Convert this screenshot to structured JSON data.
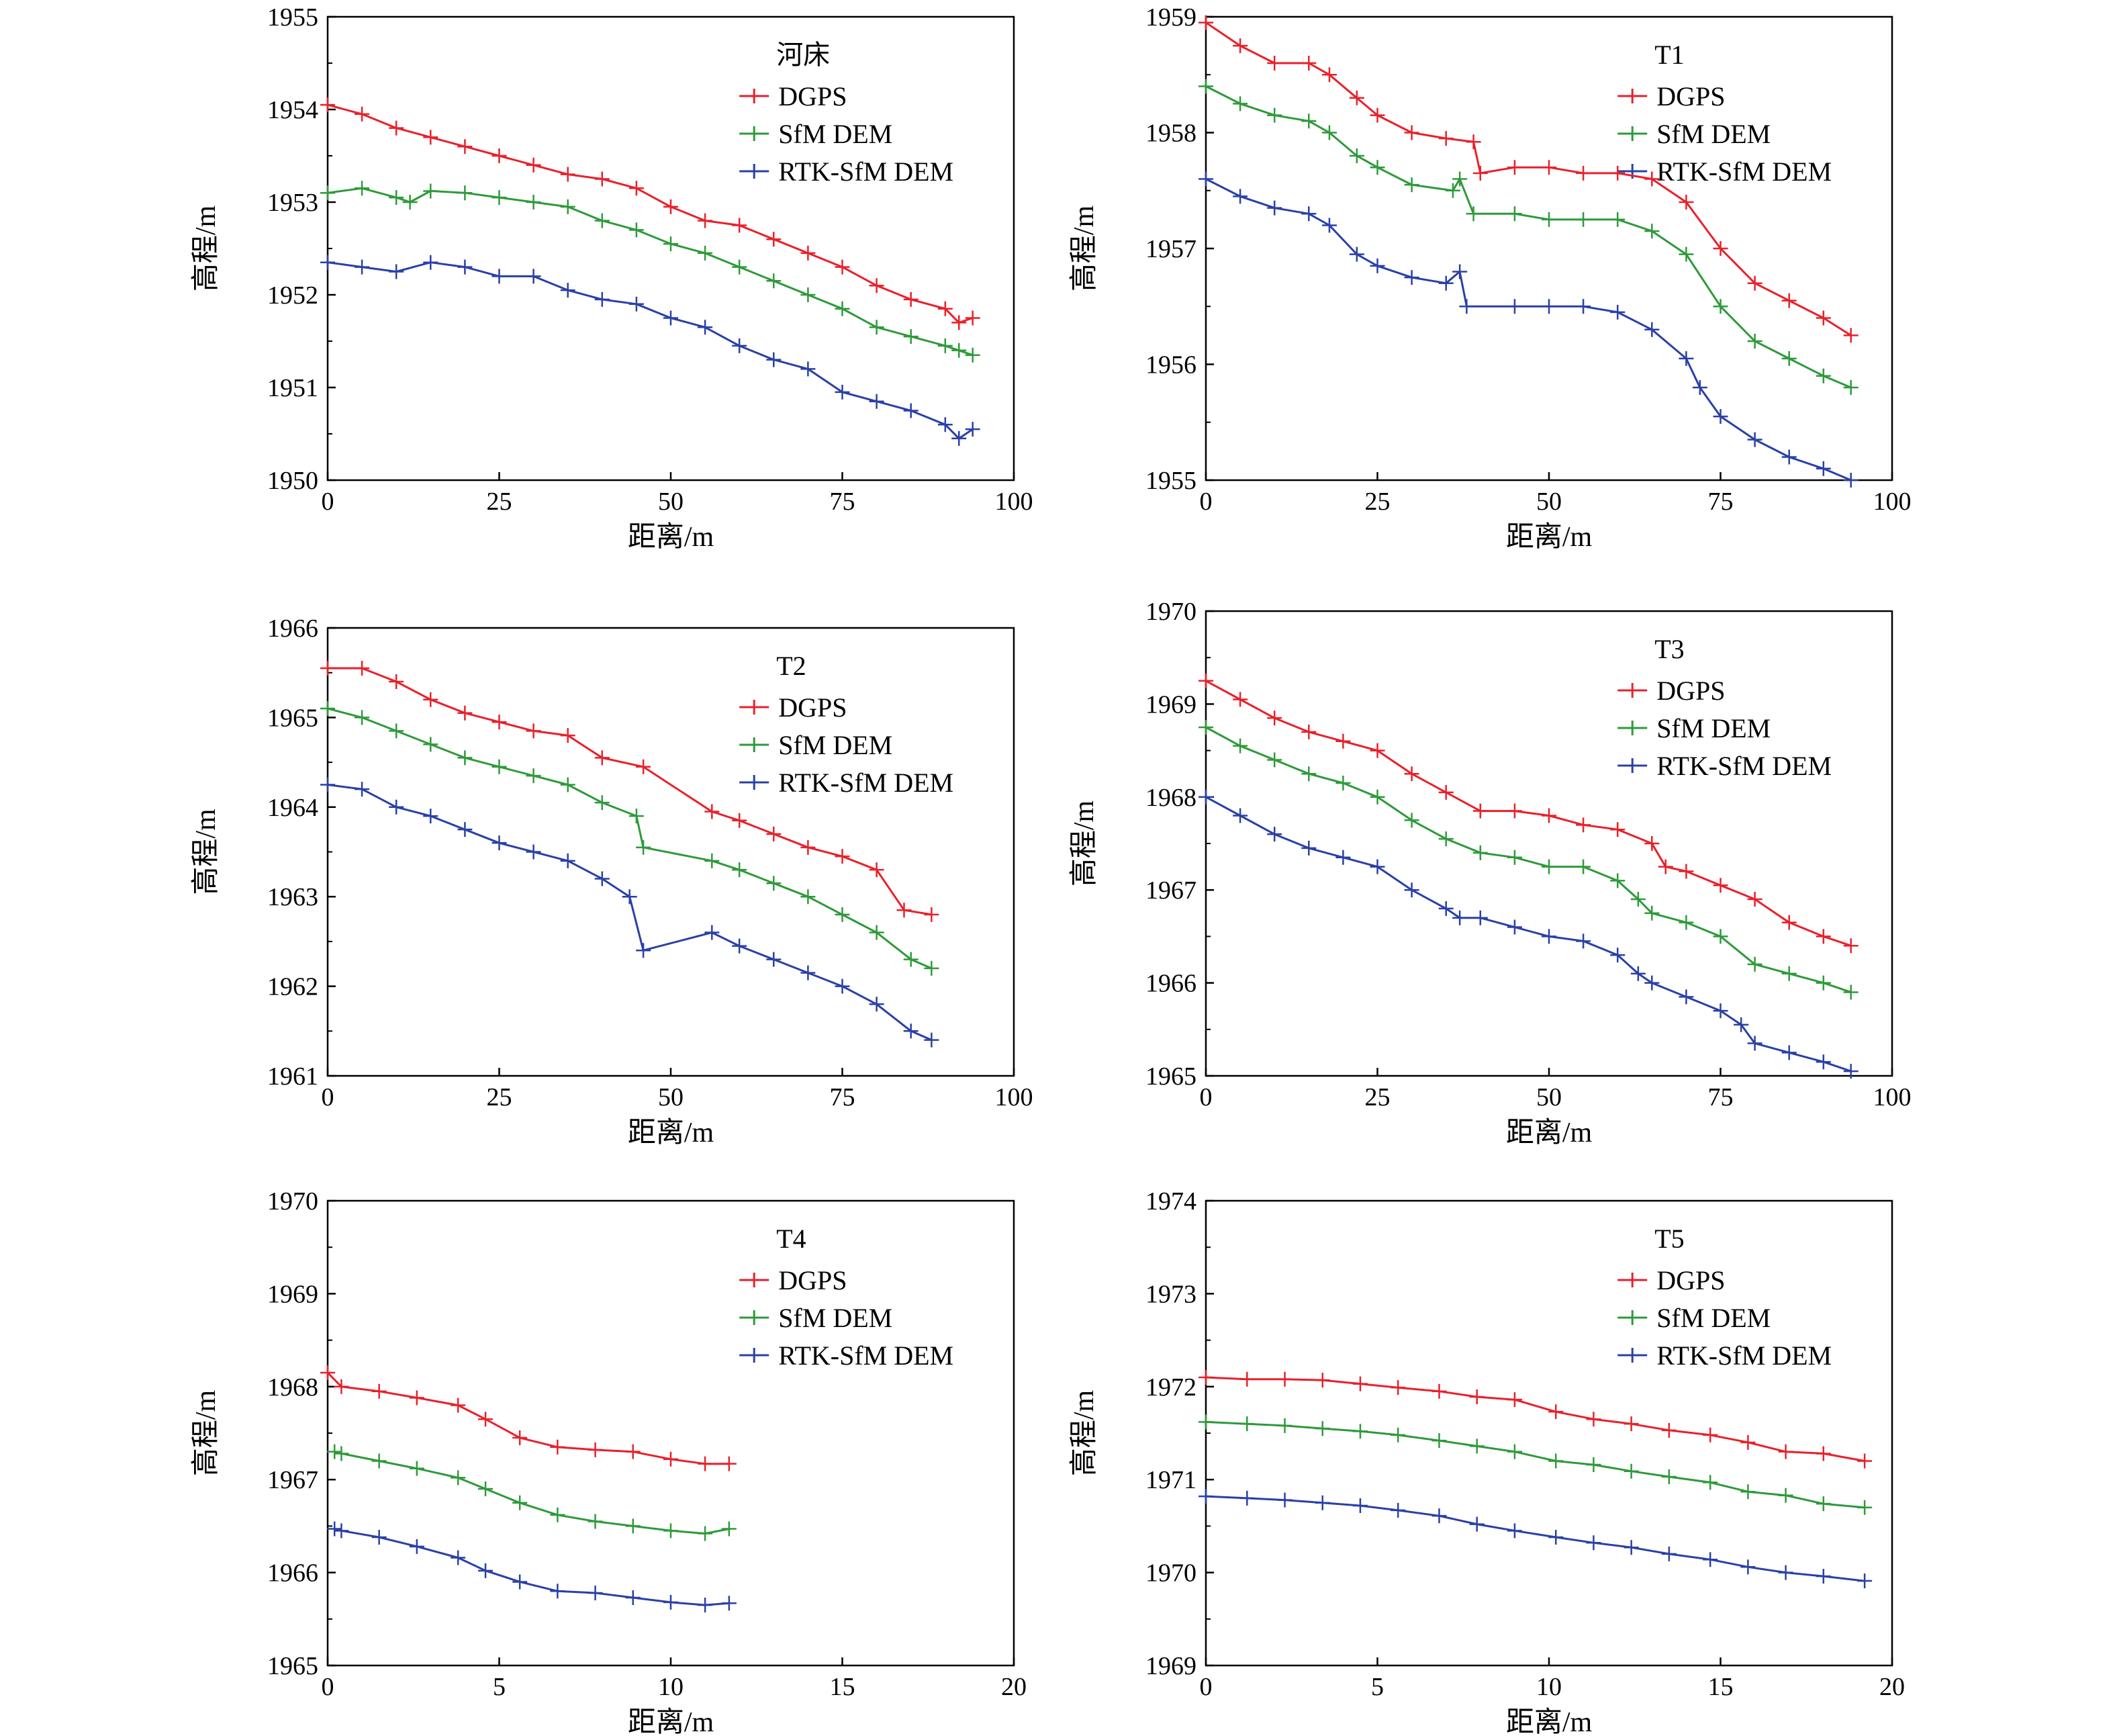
{
  "ylabel": "高程/m",
  "xlabel": "距离/m",
  "colors": {
    "DGPS": "#e8212b",
    "SfM DEM": "#2e9a3a",
    "RTK-SfM DEM": "#2a40a6"
  },
  "chart_data": [
    {
      "type": "line",
      "title": "河床",
      "xlabel": "距离/m",
      "ylabel": "高程/m",
      "xlim": [
        0,
        100
      ],
      "ylim": [
        1950,
        1955
      ],
      "xticks": [
        0,
        25,
        50,
        75,
        100
      ],
      "yticks": [
        1950,
        1951,
        1952,
        1953,
        1954,
        1955
      ],
      "legend": "top-right",
      "grid": false,
      "series": [
        {
          "name": "DGPS",
          "x": [
            0,
            5,
            10,
            15,
            20,
            25,
            30,
            35,
            40,
            45,
            50,
            55,
            60,
            65,
            70,
            75,
            80,
            85,
            90,
            92,
            94
          ],
          "y": [
            1954.05,
            1953.95,
            1953.8,
            1953.7,
            1953.6,
            1953.5,
            1953.4,
            1953.3,
            1953.25,
            1953.15,
            1952.95,
            1952.8,
            1952.75,
            1952.6,
            1952.45,
            1952.3,
            1952.1,
            1951.95,
            1951.85,
            1951.7,
            1951.75
          ]
        },
        {
          "name": "SfM DEM",
          "x": [
            0,
            5,
            10,
            12,
            15,
            20,
            25,
            30,
            35,
            40,
            45,
            50,
            55,
            60,
            65,
            70,
            75,
            80,
            85,
            90,
            92,
            94
          ],
          "y": [
            1953.1,
            1953.15,
            1953.05,
            1953.0,
            1953.12,
            1953.1,
            1953.05,
            1953.0,
            1952.95,
            1952.8,
            1952.7,
            1952.55,
            1952.45,
            1952.3,
            1952.15,
            1952.0,
            1951.85,
            1951.65,
            1951.55,
            1951.45,
            1951.4,
            1951.35
          ]
        },
        {
          "name": "RTK-SfM DEM",
          "x": [
            0,
            5,
            10,
            15,
            20,
            25,
            30,
            35,
            40,
            45,
            50,
            55,
            60,
            65,
            70,
            75,
            80,
            85,
            90,
            92,
            94
          ],
          "y": [
            1952.35,
            1952.3,
            1952.25,
            1952.35,
            1952.3,
            1952.2,
            1952.2,
            1952.05,
            1951.95,
            1951.9,
            1951.75,
            1951.65,
            1951.45,
            1951.3,
            1951.2,
            1950.95,
            1950.85,
            1950.75,
            1950.6,
            1950.45,
            1950.55
          ]
        }
      ]
    },
    {
      "type": "line",
      "title": "T1",
      "xlabel": "距离/m",
      "ylabel": "高程/m",
      "xlim": [
        0,
        100
      ],
      "ylim": [
        1955,
        1959
      ],
      "xticks": [
        0,
        25,
        50,
        75,
        100
      ],
      "yticks": [
        1955,
        1956,
        1957,
        1958,
        1959
      ],
      "legend": "top-right",
      "grid": false,
      "series": [
        {
          "name": "DGPS",
          "x": [
            0,
            5,
            10,
            15,
            18,
            22,
            25,
            30,
            35,
            39,
            40,
            45,
            50,
            55,
            60,
            65,
            70,
            75,
            80,
            85,
            90,
            94
          ],
          "y": [
            1958.95,
            1958.75,
            1958.6,
            1958.6,
            1958.5,
            1958.3,
            1958.15,
            1958.0,
            1957.95,
            1957.92,
            1957.65,
            1957.7,
            1957.7,
            1957.65,
            1957.65,
            1957.6,
            1957.4,
            1957.0,
            1956.7,
            1956.55,
            1956.4,
            1956.25
          ]
        },
        {
          "name": "SfM DEM",
          "x": [
            0,
            5,
            10,
            15,
            18,
            22,
            25,
            30,
            36,
            37,
            39,
            45,
            50,
            55,
            60,
            65,
            70,
            75,
            80,
            85,
            90,
            94
          ],
          "y": [
            1958.4,
            1958.25,
            1958.15,
            1958.1,
            1958.0,
            1957.8,
            1957.7,
            1957.55,
            1957.5,
            1957.6,
            1957.3,
            1957.3,
            1957.25,
            1957.25,
            1957.25,
            1957.15,
            1956.95,
            1956.5,
            1956.2,
            1956.05,
            1955.9,
            1955.8
          ]
        },
        {
          "name": "RTK-SfM DEM",
          "x": [
            0,
            5,
            10,
            15,
            18,
            22,
            25,
            30,
            35,
            37,
            38,
            45,
            50,
            55,
            60,
            65,
            70,
            72,
            75,
            80,
            85,
            90,
            94
          ],
          "y": [
            1957.6,
            1957.45,
            1957.35,
            1957.3,
            1957.2,
            1956.95,
            1956.85,
            1956.75,
            1956.7,
            1956.8,
            1956.5,
            1956.5,
            1956.5,
            1956.5,
            1956.45,
            1956.3,
            1956.05,
            1955.8,
            1955.55,
            1955.35,
            1955.2,
            1955.1,
            1955.0
          ]
        }
      ]
    },
    {
      "type": "line",
      "title": "T2",
      "xlabel": "距离/m",
      "ylabel": "高程/m",
      "xlim": [
        0,
        100
      ],
      "ylim": [
        1961,
        1966
      ],
      "xticks": [
        0,
        25,
        50,
        75,
        100
      ],
      "yticks": [
        1961,
        1962,
        1963,
        1964,
        1965,
        1966
      ],
      "legend": "top-right",
      "grid": false,
      "series": [
        {
          "name": "DGPS",
          "x": [
            0,
            5,
            10,
            15,
            20,
            25,
            30,
            35,
            40,
            46,
            56,
            60,
            65,
            70,
            75,
            80,
            84,
            88
          ],
          "y": [
            1965.55,
            1965.55,
            1965.4,
            1965.2,
            1965.05,
            1964.95,
            1964.85,
            1964.8,
            1964.55,
            1964.45,
            1963.95,
            1963.85,
            1963.7,
            1963.55,
            1963.45,
            1963.3,
            1962.85,
            1962.8
          ]
        },
        {
          "name": "SfM DEM",
          "x": [
            0,
            5,
            10,
            15,
            20,
            25,
            30,
            35,
            40,
            45,
            46,
            56,
            60,
            65,
            70,
            75,
            80,
            85,
            88
          ],
          "y": [
            1965.1,
            1965.0,
            1964.85,
            1964.7,
            1964.55,
            1964.45,
            1964.35,
            1964.25,
            1964.05,
            1963.9,
            1963.55,
            1963.4,
            1963.3,
            1963.15,
            1963.0,
            1962.8,
            1962.6,
            1962.3,
            1962.2
          ]
        },
        {
          "name": "RTK-SfM DEM",
          "x": [
            0,
            5,
            10,
            15,
            20,
            25,
            30,
            35,
            40,
            44,
            46,
            56,
            60,
            65,
            70,
            75,
            80,
            85,
            88
          ],
          "y": [
            1964.25,
            1964.2,
            1964.0,
            1963.9,
            1963.75,
            1963.6,
            1963.5,
            1963.4,
            1963.2,
            1963.0,
            1962.4,
            1962.6,
            1962.45,
            1962.3,
            1962.15,
            1962.0,
            1961.8,
            1961.5,
            1961.4
          ]
        }
      ]
    },
    {
      "type": "line",
      "title": "T3",
      "xlabel": "距离/m",
      "ylabel": "高程/m",
      "xlim": [
        0,
        100
      ],
      "ylim": [
        1965,
        1970
      ],
      "xticks": [
        0,
        25,
        50,
        75,
        100
      ],
      "yticks": [
        1965,
        1966,
        1967,
        1968,
        1969,
        1970
      ],
      "legend": "top-right",
      "grid": false,
      "series": [
        {
          "name": "DGPS",
          "x": [
            0,
            5,
            10,
            15,
            20,
            25,
            30,
            35,
            40,
            45,
            50,
            55,
            60,
            65,
            67,
            70,
            75,
            80,
            85,
            90,
            94
          ],
          "y": [
            1969.25,
            1969.05,
            1968.85,
            1968.7,
            1968.6,
            1968.5,
            1968.25,
            1968.05,
            1967.85,
            1967.85,
            1967.8,
            1967.7,
            1967.65,
            1967.5,
            1967.25,
            1967.2,
            1967.05,
            1966.9,
            1966.65,
            1966.5,
            1966.4
          ]
        },
        {
          "name": "SfM DEM",
          "x": [
            0,
            5,
            10,
            15,
            20,
            25,
            30,
            35,
            40,
            45,
            50,
            55,
            60,
            63,
            65,
            70,
            75,
            80,
            85,
            90,
            94
          ],
          "y": [
            1968.75,
            1968.55,
            1968.4,
            1968.25,
            1968.15,
            1968.0,
            1967.75,
            1967.55,
            1967.4,
            1967.35,
            1967.25,
            1967.25,
            1967.1,
            1966.9,
            1966.75,
            1966.65,
            1966.5,
            1966.2,
            1966.1,
            1966.0,
            1965.9
          ]
        },
        {
          "name": "RTK-SfM DEM",
          "x": [
            0,
            5,
            10,
            15,
            20,
            25,
            30,
            35,
            37,
            40,
            45,
            50,
            55,
            60,
            63,
            65,
            70,
            75,
            78,
            80,
            85,
            90,
            94
          ],
          "y": [
            1968.0,
            1967.8,
            1967.6,
            1967.45,
            1967.35,
            1967.25,
            1967.0,
            1966.8,
            1966.7,
            1966.7,
            1966.6,
            1966.5,
            1966.45,
            1966.3,
            1966.1,
            1966.0,
            1965.85,
            1965.7,
            1965.55,
            1965.35,
            1965.25,
            1965.15,
            1965.05
          ]
        }
      ]
    },
    {
      "type": "line",
      "title": "T4",
      "xlabel": "距离/m",
      "ylabel": "高程/m",
      "xlim": [
        0,
        20
      ],
      "ylim": [
        1965,
        1970
      ],
      "xticks": [
        0,
        5,
        10,
        15,
        20
      ],
      "yticks": [
        1965,
        1966,
        1967,
        1968,
        1969,
        1970
      ],
      "legend": "top-right",
      "grid": false,
      "series": [
        {
          "name": "DGPS",
          "x": [
            0,
            0.4,
            1.5,
            2.6,
            3.8,
            4.6,
            5.6,
            6.7,
            7.8,
            8.9,
            10.0,
            11.0,
            11.7
          ],
          "y": [
            1968.15,
            1968.0,
            1967.95,
            1967.88,
            1967.8,
            1967.65,
            1967.45,
            1967.35,
            1967.32,
            1967.3,
            1967.22,
            1967.17,
            1967.17
          ]
        },
        {
          "name": "SfM DEM",
          "x": [
            0.2,
            0.4,
            1.5,
            2.6,
            3.8,
            4.6,
            5.6,
            6.7,
            7.8,
            8.9,
            10.0,
            11.0,
            11.7
          ],
          "y": [
            1967.3,
            1967.28,
            1967.2,
            1967.12,
            1967.02,
            1966.9,
            1966.75,
            1966.62,
            1966.55,
            1966.5,
            1966.45,
            1966.42,
            1966.47
          ]
        },
        {
          "name": "RTK-SfM DEM",
          "x": [
            0.2,
            0.4,
            1.5,
            2.6,
            3.8,
            4.6,
            5.6,
            6.7,
            7.8,
            8.9,
            10.0,
            11.0,
            11.7
          ],
          "y": [
            1966.47,
            1966.45,
            1966.38,
            1966.28,
            1966.16,
            1966.02,
            1965.9,
            1965.8,
            1965.78,
            1965.73,
            1965.68,
            1965.65,
            1965.67
          ]
        }
      ]
    },
    {
      "type": "line",
      "title": "T5",
      "xlabel": "距离/m",
      "ylabel": "高程/m",
      "xlim": [
        0,
        20
      ],
      "ylim": [
        1969,
        1974
      ],
      "xticks": [
        0,
        5,
        10,
        15,
        20
      ],
      "yticks": [
        1969,
        1970,
        1971,
        1972,
        1973,
        1974
      ],
      "legend": "top-right",
      "grid": false,
      "series": [
        {
          "name": "DGPS",
          "x": [
            0,
            1.2,
            2.3,
            3.4,
            4.5,
            5.6,
            6.8,
            7.9,
            9.0,
            10.2,
            11.3,
            12.4,
            13.5,
            14.7,
            15.8,
            16.9,
            18.0,
            19.2
          ],
          "y": [
            1972.1,
            1972.08,
            1972.08,
            1972.07,
            1972.03,
            1971.99,
            1971.95,
            1971.89,
            1971.86,
            1971.73,
            1971.65,
            1971.6,
            1971.53,
            1971.48,
            1971.4,
            1971.3,
            1971.28,
            1971.2
          ]
        },
        {
          "name": "SfM DEM",
          "x": [
            0,
            1.2,
            2.3,
            3.4,
            4.5,
            5.6,
            6.8,
            7.9,
            9.0,
            10.2,
            11.3,
            12.4,
            13.5,
            14.7,
            15.8,
            16.9,
            18.0,
            19.2
          ],
          "y": [
            1971.62,
            1971.6,
            1971.58,
            1971.55,
            1971.52,
            1971.48,
            1971.42,
            1971.36,
            1971.3,
            1971.2,
            1971.16,
            1971.09,
            1971.03,
            1970.97,
            1970.87,
            1970.83,
            1970.74,
            1970.7
          ]
        },
        {
          "name": "RTK-SfM DEM",
          "x": [
            0,
            1.2,
            2.3,
            3.4,
            4.5,
            5.6,
            6.8,
            7.9,
            9.0,
            10.2,
            11.3,
            12.4,
            13.5,
            14.7,
            15.8,
            16.9,
            18.0,
            19.2
          ],
          "y": [
            1970.82,
            1970.8,
            1970.78,
            1970.75,
            1970.72,
            1970.67,
            1970.61,
            1970.52,
            1970.45,
            1970.38,
            1970.32,
            1970.27,
            1970.2,
            1970.14,
            1970.06,
            1970.0,
            1969.96,
            1969.91
          ]
        }
      ]
    }
  ]
}
